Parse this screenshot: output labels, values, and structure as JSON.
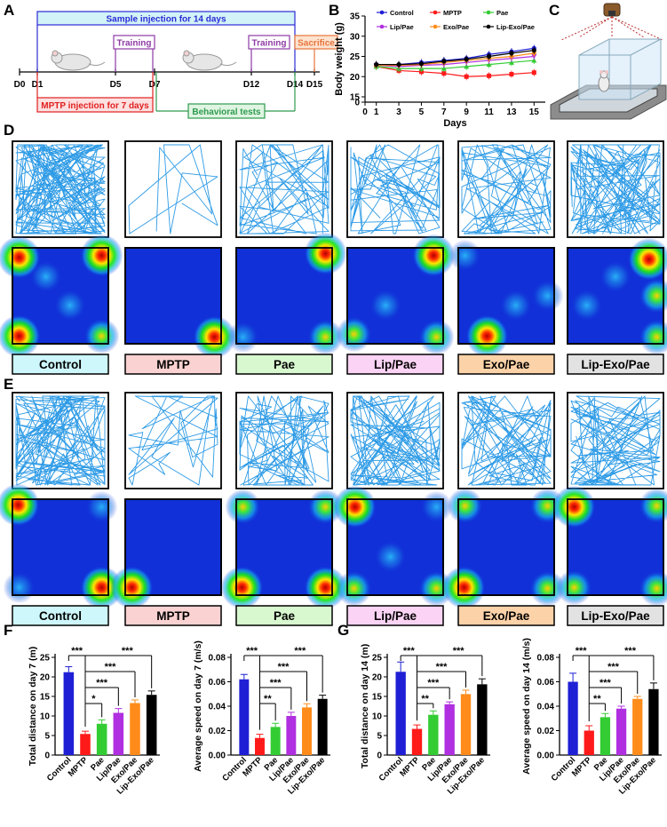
{
  "panel_letters": [
    "A",
    "B",
    "C",
    "D",
    "E",
    "F",
    "G"
  ],
  "timeline": {
    "sample_injection": "Sample injection for 14 days",
    "mptp_injection": "MPTP injection for 7 days",
    "behavioral_tests": "Behavioral tests",
    "training": "Training",
    "sacrifice": "Sacrifice",
    "days": [
      "D0",
      "D1",
      "D5",
      "D7",
      "D12",
      "D14",
      "D15"
    ],
    "colors": {
      "sample": "#2b2bd6",
      "training": "#8e3aa5",
      "sacrifice": "#e8743b",
      "mptp": "#e02020",
      "behavioral": "#2e9b4e"
    }
  },
  "groups": [
    "Control",
    "MPTP",
    "Pae",
    "Lip/Pae",
    "Exo/Pae",
    "Lip-Exo/Pae"
  ],
  "group_colors": [
    "#1f1fd6",
    "#ff1a1a",
    "#33cc33",
    "#b02fe0",
    "#ff8c1a",
    "#000000"
  ],
  "label_box_colors": [
    "#cdf7fb",
    "#fbd2d2",
    "#d8f8d0",
    "#fbd3f4",
    "#fcd2a8",
    "#e2e2e2"
  ],
  "chart_data": [
    {
      "type": "line",
      "panel": "B",
      "xlabel": "Days",
      "ylabel": "Body weight (g)",
      "xticks": [
        0,
        1,
        3,
        5,
        7,
        9,
        11,
        13,
        15
      ],
      "yticks": [
        0,
        15,
        20,
        25,
        30,
        35
      ],
      "ylim": [
        0,
        35
      ],
      "legend_placement": "top",
      "x": [
        1,
        3,
        5,
        7,
        9,
        11,
        13,
        15
      ],
      "series": [
        {
          "name": "Control",
          "values": [
            23,
            23,
            23.5,
            24,
            24.5,
            25.5,
            26.2,
            27
          ]
        },
        {
          "name": "MPTP",
          "values": [
            22.5,
            21.5,
            21.2,
            20.8,
            20,
            20.2,
            20.6,
            21
          ]
        },
        {
          "name": "Pae",
          "values": [
            22.5,
            22,
            22,
            22,
            22.5,
            23,
            23.5,
            24
          ]
        },
        {
          "name": "Lip/Pae",
          "values": [
            22.8,
            22.5,
            22.8,
            23,
            23.5,
            24,
            24.5,
            25
          ]
        },
        {
          "name": "Exo/Pae",
          "values": [
            22.8,
            22.8,
            23,
            23.5,
            24,
            24.5,
            25,
            25.8
          ]
        },
        {
          "name": "Lip-Exo/Pae",
          "values": [
            23,
            23,
            23.2,
            23.8,
            24.3,
            25,
            25.8,
            26.5
          ]
        }
      ]
    },
    {
      "type": "bar",
      "panel": "F",
      "ylabel": "Total distance on day 7 (m)",
      "categories": [
        "Control",
        "MPTP",
        "Pae",
        "Lip/Pae",
        "Exo/Pae",
        "Lip-Exo/Pae"
      ],
      "values": [
        21.2,
        5.4,
        8.0,
        10.8,
        13.3,
        15.4
      ],
      "errors": [
        1.4,
        0.7,
        1.0,
        1.1,
        0.8,
        1.0
      ],
      "yticks": [
        0,
        5,
        10,
        15,
        20,
        25
      ],
      "ylim": [
        0,
        25
      ],
      "significance": [
        "***",
        "***",
        "*",
        "***",
        "***",
        "***"
      ]
    },
    {
      "type": "bar",
      "panel": "F",
      "ylabel": "Average speed on day 7 (m/s)",
      "categories": [
        "Control",
        "MPTP",
        "Pae",
        "Lip/Pae",
        "Exo/Pae",
        "Lip-Exo/Pae"
      ],
      "values": [
        0.062,
        0.014,
        0.023,
        0.032,
        0.039,
        0.046
      ],
      "errors": [
        0.004,
        0.003,
        0.003,
        0.003,
        0.003,
        0.003
      ],
      "yticks": [
        "0.00",
        "0.02",
        "0.04",
        "0.06",
        "0.08"
      ],
      "ylim": [
        0,
        0.08
      ],
      "significance": [
        "***",
        "***",
        "**",
        "***",
        "***",
        "***"
      ]
    },
    {
      "type": "bar",
      "panel": "G",
      "ylabel": "Total distance on day 14 (m)",
      "categories": [
        "Control",
        "MPTP",
        "Pae",
        "Lip/Pae",
        "Exo/Pae",
        "Lip-Exo/Pae"
      ],
      "values": [
        21.3,
        6.7,
        10.3,
        13.0,
        15.6,
        18.1
      ],
      "errors": [
        2.5,
        1.0,
        1.0,
        0.6,
        1.0,
        1.4
      ],
      "yticks": [
        0,
        5,
        10,
        15,
        20,
        25
      ],
      "ylim": [
        0,
        25
      ],
      "significance": [
        "***",
        "***",
        "**",
        "***",
        "***",
        "***"
      ]
    },
    {
      "type": "bar",
      "panel": "G",
      "ylabel": "Average speed on day 14 (m/s)",
      "categories": [
        "Control",
        "MPTP",
        "Pae",
        "Lip/Pae",
        "Exo/Pae",
        "Lip-Exo/Pae"
      ],
      "values": [
        0.06,
        0.02,
        0.031,
        0.038,
        0.046,
        0.054
      ],
      "errors": [
        0.007,
        0.004,
        0.003,
        0.002,
        0.002,
        0.005
      ],
      "yticks": [
        "0.00",
        "0.02",
        "0.04",
        "0.06",
        "0.08"
      ],
      "ylim": [
        0,
        0.08
      ],
      "significance": [
        "***",
        "***",
        "**",
        "***",
        "***",
        "***"
      ]
    }
  ],
  "heatmap_hotspots": {
    "D": [
      [
        [
          0.07,
          0.1,
          1.0
        ],
        [
          0.93,
          0.08,
          1.0
        ],
        [
          0.07,
          0.92,
          0.9
        ],
        [
          0.93,
          0.92,
          0.7
        ],
        [
          0.35,
          0.3,
          0.4
        ],
        [
          0.6,
          0.6,
          0.4
        ]
      ],
      [
        [
          0.93,
          0.93,
          1.0
        ]
      ],
      [
        [
          0.93,
          0.06,
          1.0
        ],
        [
          0.93,
          0.93,
          0.7
        ],
        [
          0.07,
          0.93,
          0.5
        ]
      ],
      [
        [
          0.9,
          0.08,
          1.0
        ],
        [
          0.07,
          0.9,
          0.7
        ],
        [
          0.93,
          0.93,
          0.6
        ],
        [
          0.4,
          0.6,
          0.3
        ]
      ],
      [
        [
          0.3,
          0.92,
          1.0
        ],
        [
          0.93,
          0.5,
          0.4
        ],
        [
          0.07,
          0.08,
          0.4
        ],
        [
          0.6,
          0.6,
          0.3
        ]
      ],
      [
        [
          0.85,
          0.12,
          1.0
        ],
        [
          0.93,
          0.5,
          0.8
        ],
        [
          0.93,
          0.93,
          0.8
        ],
        [
          0.5,
          0.3,
          0.4
        ],
        [
          0.2,
          0.6,
          0.4
        ]
      ]
    ],
    "E": [
      [
        [
          0.06,
          0.06,
          1.0
        ],
        [
          0.93,
          0.92,
          1.0
        ],
        [
          0.93,
          0.08,
          0.5
        ],
        [
          0.07,
          0.92,
          0.5
        ]
      ],
      [
        [
          0.07,
          0.92,
          1.0
        ]
      ],
      [
        [
          0.06,
          0.92,
          1.0
        ],
        [
          0.93,
          0.92,
          1.0
        ],
        [
          0.07,
          0.08,
          0.6
        ],
        [
          0.93,
          0.08,
          0.6
        ]
      ],
      [
        [
          0.08,
          0.08,
          1.0
        ],
        [
          0.93,
          0.93,
          0.8
        ],
        [
          0.07,
          0.93,
          0.6
        ],
        [
          0.45,
          0.6,
          0.4
        ],
        [
          0.93,
          0.08,
          0.5
        ]
      ],
      [
        [
          0.06,
          0.92,
          1.0
        ],
        [
          0.93,
          0.93,
          0.8
        ],
        [
          0.93,
          0.07,
          0.7
        ],
        [
          0.07,
          0.07,
          0.6
        ]
      ],
      [
        [
          0.07,
          0.08,
          1.0
        ],
        [
          0.93,
          0.07,
          0.8
        ],
        [
          0.07,
          0.92,
          0.8
        ],
        [
          0.93,
          0.93,
          0.8
        ]
      ]
    ]
  }
}
